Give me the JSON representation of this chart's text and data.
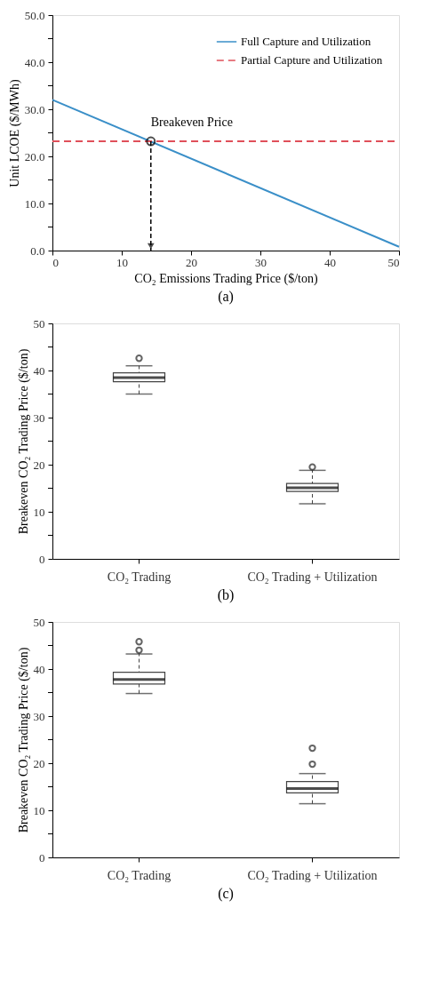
{
  "chart_data": [
    {
      "type": "line",
      "xlabel": "CO₂ Emissions Trading Price ($/ton)",
      "ylabel": "Unit LCOE ($/MWh)",
      "xlim": [
        0,
        50
      ],
      "ylim": [
        0,
        50
      ],
      "xticks": [
        0,
        10,
        20,
        30,
        40,
        50
      ],
      "yticks": [
        {
          "value": 0,
          "label": "0.0"
        },
        {
          "value": 5,
          "label": null
        },
        {
          "value": 10,
          "label": "10.0"
        },
        {
          "value": 15,
          "label": null
        },
        {
          "value": 20,
          "label": "20.0"
        },
        {
          "value": 25,
          "label": null
        },
        {
          "value": 30,
          "label": "30.0"
        },
        {
          "value": 35,
          "label": null
        },
        {
          "value": 40,
          "label": "40.0"
        },
        {
          "value": 45,
          "label": null
        },
        {
          "value": 50,
          "label": "50.0"
        }
      ],
      "legend": "top right",
      "x": [
        0,
        50
      ],
      "series": [
        {
          "name": "Full Capture and Utilization",
          "color": "#3a8fc8",
          "line_style": "solid",
          "values": [
            32.0,
            0.8
          ]
        },
        {
          "name": "Partial Capture and Utilization",
          "color": "#e0505a",
          "line_style": "dashed",
          "values": [
            23.2,
            23.2
          ]
        }
      ],
      "annotations": [
        {
          "text": "Breakeven Price",
          "x": 14.2,
          "y": 23.2
        },
        "(a)"
      ]
    },
    {
      "type": "box",
      "ylabel": "Breakeven CO₂ Trading Price ($/ton)",
      "categories": [
        "CO₂ Trading",
        "CO₂ Trading + Utilization"
      ],
      "ylim": [
        0,
        50
      ],
      "yticks": [
        0,
        {
          "value": 5,
          "label": null
        },
        10,
        {
          "value": 15,
          "label": null
        },
        20,
        {
          "value": 25,
          "label": null
        },
        30,
        {
          "value": 35,
          "label": null
        },
        40,
        {
          "value": 45,
          "label": null
        },
        50
      ],
      "boxes": [
        {
          "low": 35.0,
          "q1": 37.6,
          "median": 38.5,
          "q3": 39.5,
          "high": 41.0,
          "outliers": [
            42.6
          ]
        },
        {
          "low": 11.7,
          "q1": 14.3,
          "median": 15.1,
          "q3": 16.0,
          "high": 18.8,
          "outliers": [
            19.5
          ]
        }
      ],
      "annotations": [
        "(b)"
      ]
    },
    {
      "type": "box",
      "ylabel": "Breakeven CO₂ Trading Price ($/ton)",
      "categories": [
        "CO₂ Trading",
        "CO₂ Trading + Utilization"
      ],
      "ylim": [
        0,
        50
      ],
      "yticks": [
        0,
        {
          "value": 5,
          "label": null
        },
        10,
        {
          "value": 15,
          "label": null
        },
        20,
        {
          "value": 25,
          "label": null
        },
        30,
        {
          "value": 35,
          "label": null
        },
        40,
        {
          "value": 45,
          "label": null
        },
        50
      ],
      "boxes": [
        {
          "low": 34.8,
          "q1": 36.8,
          "median": 37.8,
          "q3": 39.3,
          "high": 43.2,
          "outliers": [
            44.0,
            45.8
          ]
        },
        {
          "low": 11.4,
          "q1": 13.7,
          "median": 14.6,
          "q3": 16.1,
          "high": 17.8,
          "outliers": [
            19.8,
            23.2
          ]
        }
      ],
      "annotations": [
        "(c)"
      ]
    }
  ]
}
